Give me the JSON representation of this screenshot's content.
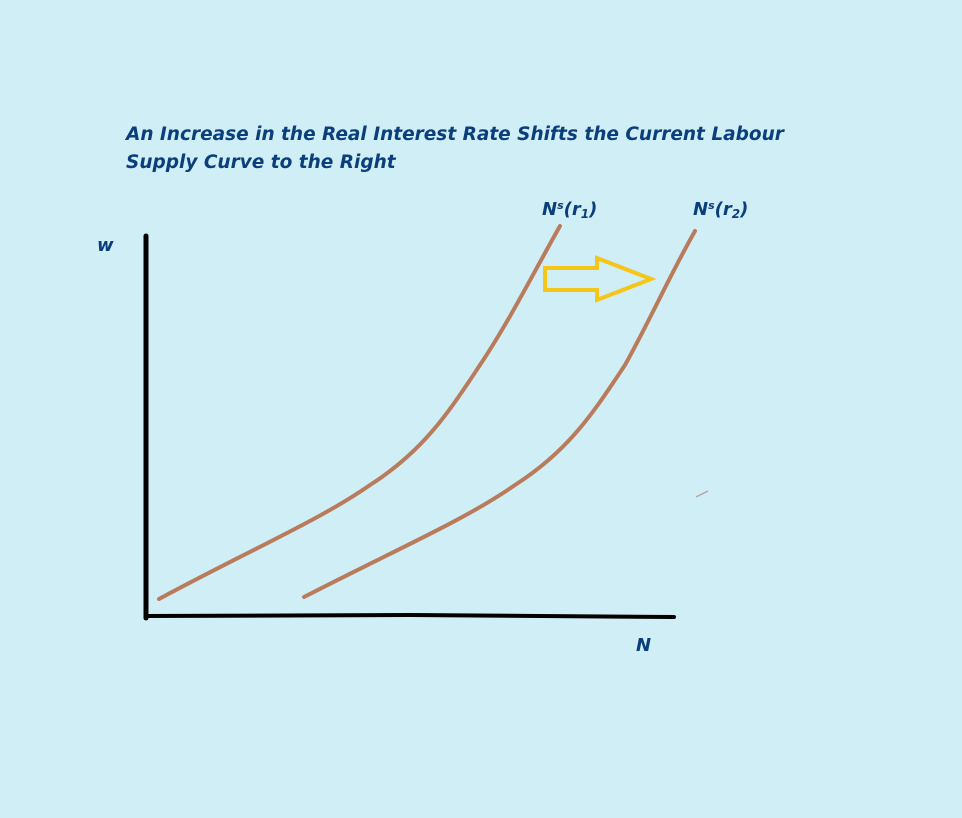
{
  "title": {
    "line1": "An Increase in the Real Interest Rate Shifts the Current Labour",
    "line2": "Supply Curve to the Right"
  },
  "axes": {
    "y_label": "w",
    "x_label": "N"
  },
  "curves": [
    {
      "base": "N",
      "sup": "s",
      "open": "(r",
      "sub": "1",
      "close": ")"
    },
    {
      "base": "N",
      "sup": "s",
      "open": "(r",
      "sub": "2",
      "close": ")"
    }
  ],
  "colors": {
    "background": "#d0eef6",
    "text": "#0b3f7c",
    "axis": "#000000",
    "curve": "#b87c5c",
    "arrow": "#f5c518"
  },
  "arrow": {
    "icon": "right-arrow-icon",
    "meaning": "shift right"
  }
}
